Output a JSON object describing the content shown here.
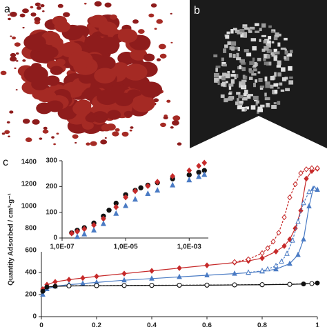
{
  "panel_labels": [
    "a",
    "b",
    "c"
  ],
  "chart_data": [
    {
      "type": "scatter",
      "ylabel": "Quantity Adsorbed / cm³·g⁻¹",
      "xlim": [
        0,
        1
      ],
      "xticks": [
        0,
        0.2,
        0.4,
        0.6,
        0.8,
        1
      ],
      "ylim": [
        0,
        1400
      ],
      "yticks": [
        0,
        200,
        400,
        600,
        800,
        1000,
        1200,
        1400
      ],
      "series": [
        {
          "color": "#c62a2a",
          "marker": "diamond",
          "fill": "filled",
          "line": "solid",
          "x": [
            0.005,
            0.02,
            0.05,
            0.1,
            0.15,
            0.2,
            0.3,
            0.4,
            0.5,
            0.6,
            0.7,
            0.75,
            0.8,
            0.85,
            0.88,
            0.9,
            0.92,
            0.94,
            0.96,
            0.98,
            1.0
          ],
          "values": [
            250,
            290,
            315,
            335,
            350,
            365,
            390,
            415,
            440,
            465,
            490,
            505,
            530,
            590,
            640,
            700,
            800,
            960,
            1250,
            1320,
            1340
          ]
        },
        {
          "color": "#c62a2a",
          "marker": "diamond",
          "fill": "open",
          "line": "dashed",
          "x": [
            1.0,
            0.98,
            0.96,
            0.94,
            0.92,
            0.9,
            0.88,
            0.86,
            0.84,
            0.82,
            0.8,
            0.75,
            0.7
          ],
          "values": [
            1345,
            1345,
            1335,
            1300,
            1200,
            1080,
            900,
            760,
            680,
            620,
            575,
            520,
            495
          ]
        },
        {
          "color": "#4a7bc4",
          "marker": "triangle",
          "fill": "filled",
          "line": "solid",
          "x": [
            0.005,
            0.02,
            0.05,
            0.1,
            0.15,
            0.2,
            0.3,
            0.4,
            0.5,
            0.6,
            0.7,
            0.75,
            0.8,
            0.85,
            0.9,
            0.93,
            0.95,
            0.97,
            0.985,
            1.0
          ],
          "values": [
            200,
            250,
            275,
            290,
            300,
            310,
            330,
            345,
            360,
            375,
            390,
            398,
            410,
            430,
            480,
            560,
            700,
            1000,
            1160,
            1150
          ]
        },
        {
          "color": "#4a7bc4",
          "marker": "triangle",
          "fill": "open",
          "line": "dashed",
          "x": [
            0.99,
            0.97,
            0.95,
            0.93,
            0.91,
            0.89,
            0.87,
            0.85,
            0.82,
            0.8,
            0.75
          ],
          "values": [
            1160,
            1130,
            1030,
            860,
            690,
            570,
            500,
            460,
            430,
            415,
            400
          ]
        },
        {
          "color": "#111111",
          "marker": "circle",
          "fill": "filled",
          "line": "solid",
          "x": [
            0.005,
            0.02,
            0.05,
            0.1,
            0.2,
            0.3,
            0.4,
            0.5,
            0.6,
            0.7,
            0.8,
            0.9,
            0.95,
            1.0
          ],
          "values": [
            230,
            268,
            275,
            278,
            280,
            282,
            283,
            284,
            285,
            287,
            289,
            292,
            296,
            305
          ]
        },
        {
          "color": "#111111",
          "marker": "circle",
          "fill": "open",
          "line": "dashed",
          "x": [
            0.98,
            0.9,
            0.8,
            0.7,
            0.6,
            0.5,
            0.4,
            0.3,
            0.2,
            0.1
          ],
          "values": [
            300,
            293,
            290,
            288,
            286,
            285,
            284,
            283,
            281,
            279
          ]
        }
      ]
    },
    {
      "type": "scatter",
      "xscale": "log",
      "xlim": [
        1e-07,
        0.004
      ],
      "xticks": [
        {
          "value": 1e-07,
          "label": "1,0E-07"
        },
        {
          "value": 1e-05,
          "label": "1,0E-05"
        },
        {
          "value": 0.001,
          "label": "1,0E-03"
        }
      ],
      "ylim": [
        0,
        300
      ],
      "yticks": [
        0,
        100,
        200,
        300
      ],
      "series": [
        {
          "color": "#111111",
          "marker": "circle",
          "fill": "filled",
          "x": [
            2e-07,
            3e-07,
            5e-07,
            1e-06,
            2e-06,
            3e-06,
            5e-06,
            1e-05,
            2e-05,
            3e-05,
            5e-05,
            0.0001,
            0.0003,
            0.001,
            0.002,
            0.003
          ],
          "values": [
            20,
            30,
            40,
            58,
            85,
            108,
            135,
            168,
            185,
            195,
            205,
            215,
            230,
            245,
            255,
            262
          ]
        },
        {
          "color": "#c62a2a",
          "marker": "diamond",
          "fill": "filled",
          "x": [
            2e-07,
            3e-07,
            5e-07,
            1e-06,
            2e-06,
            5e-06,
            1e-05,
            2e-05,
            5e-05,
            0.0001,
            0.0003,
            0.001,
            0.002,
            0.003
          ],
          "values": [
            18,
            25,
            35,
            50,
            75,
            120,
            158,
            182,
            202,
            218,
            240,
            262,
            280,
            292
          ]
        },
        {
          "color": "#4a7bc4",
          "marker": "triangle",
          "fill": "filled",
          "x": [
            3e-07,
            5e-07,
            1e-06,
            2e-06,
            5e-06,
            1e-05,
            2e-05,
            5e-05,
            0.0001,
            0.0003,
            0.001,
            0.002,
            0.003
          ],
          "values": [
            5,
            15,
            30,
            55,
            95,
            125,
            150,
            172,
            185,
            205,
            225,
            238,
            246
          ]
        }
      ]
    }
  ]
}
